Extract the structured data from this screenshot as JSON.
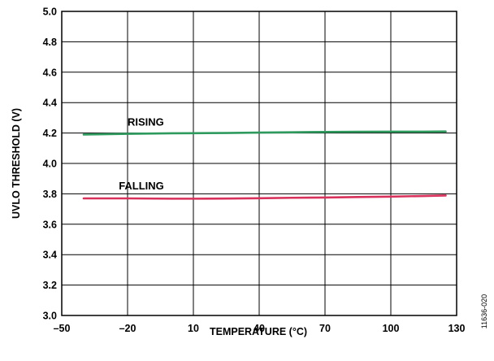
{
  "chart_data": {
    "type": "line",
    "title": "",
    "xlabel": "TEMPERATURE (°C)",
    "ylabel": "UVLO THRESHOLD (V)",
    "xlim": [
      -50,
      130
    ],
    "ylim": [
      3.0,
      5.0
    ],
    "x_ticks": [
      -50,
      -20,
      10,
      40,
      70,
      100,
      130
    ],
    "x_tick_labels": [
      "–50",
      "–20",
      "10",
      "40",
      "70",
      "100",
      "130"
    ],
    "y_ticks": [
      3.0,
      3.2,
      3.4,
      3.6,
      3.8,
      4.0,
      4.2,
      4.4,
      4.6,
      4.8,
      5.0
    ],
    "y_tick_labels": [
      "3.0",
      "3.2",
      "3.4",
      "3.6",
      "3.8",
      "4.0",
      "4.2",
      "4.4",
      "4.6",
      "4.8",
      "5.0"
    ],
    "grid": true,
    "series": [
      {
        "name": "RISING",
        "color": "#2e9a5e",
        "x": [
          -40,
          -20,
          0,
          10,
          25,
          40,
          55,
          70,
          85,
          100,
          115,
          125
        ],
        "y": [
          4.19,
          4.195,
          4.198,
          4.199,
          4.2,
          4.203,
          4.205,
          4.207,
          4.208,
          4.209,
          4.209,
          4.21
        ]
      },
      {
        "name": "FALLING",
        "color": "#d8315b",
        "x": [
          -40,
          -20,
          0,
          10,
          25,
          40,
          55,
          70,
          85,
          100,
          115,
          125
        ],
        "y": [
          3.77,
          3.77,
          3.768,
          3.768,
          3.769,
          3.771,
          3.774,
          3.776,
          3.779,
          3.782,
          3.786,
          3.789
        ]
      }
    ],
    "annotations": [
      {
        "text": "RISING",
        "x": -20,
        "y": 4.25
      },
      {
        "text": "FALLING",
        "x": -24,
        "y": 3.83
      }
    ]
  },
  "figure_id": "11636-020"
}
